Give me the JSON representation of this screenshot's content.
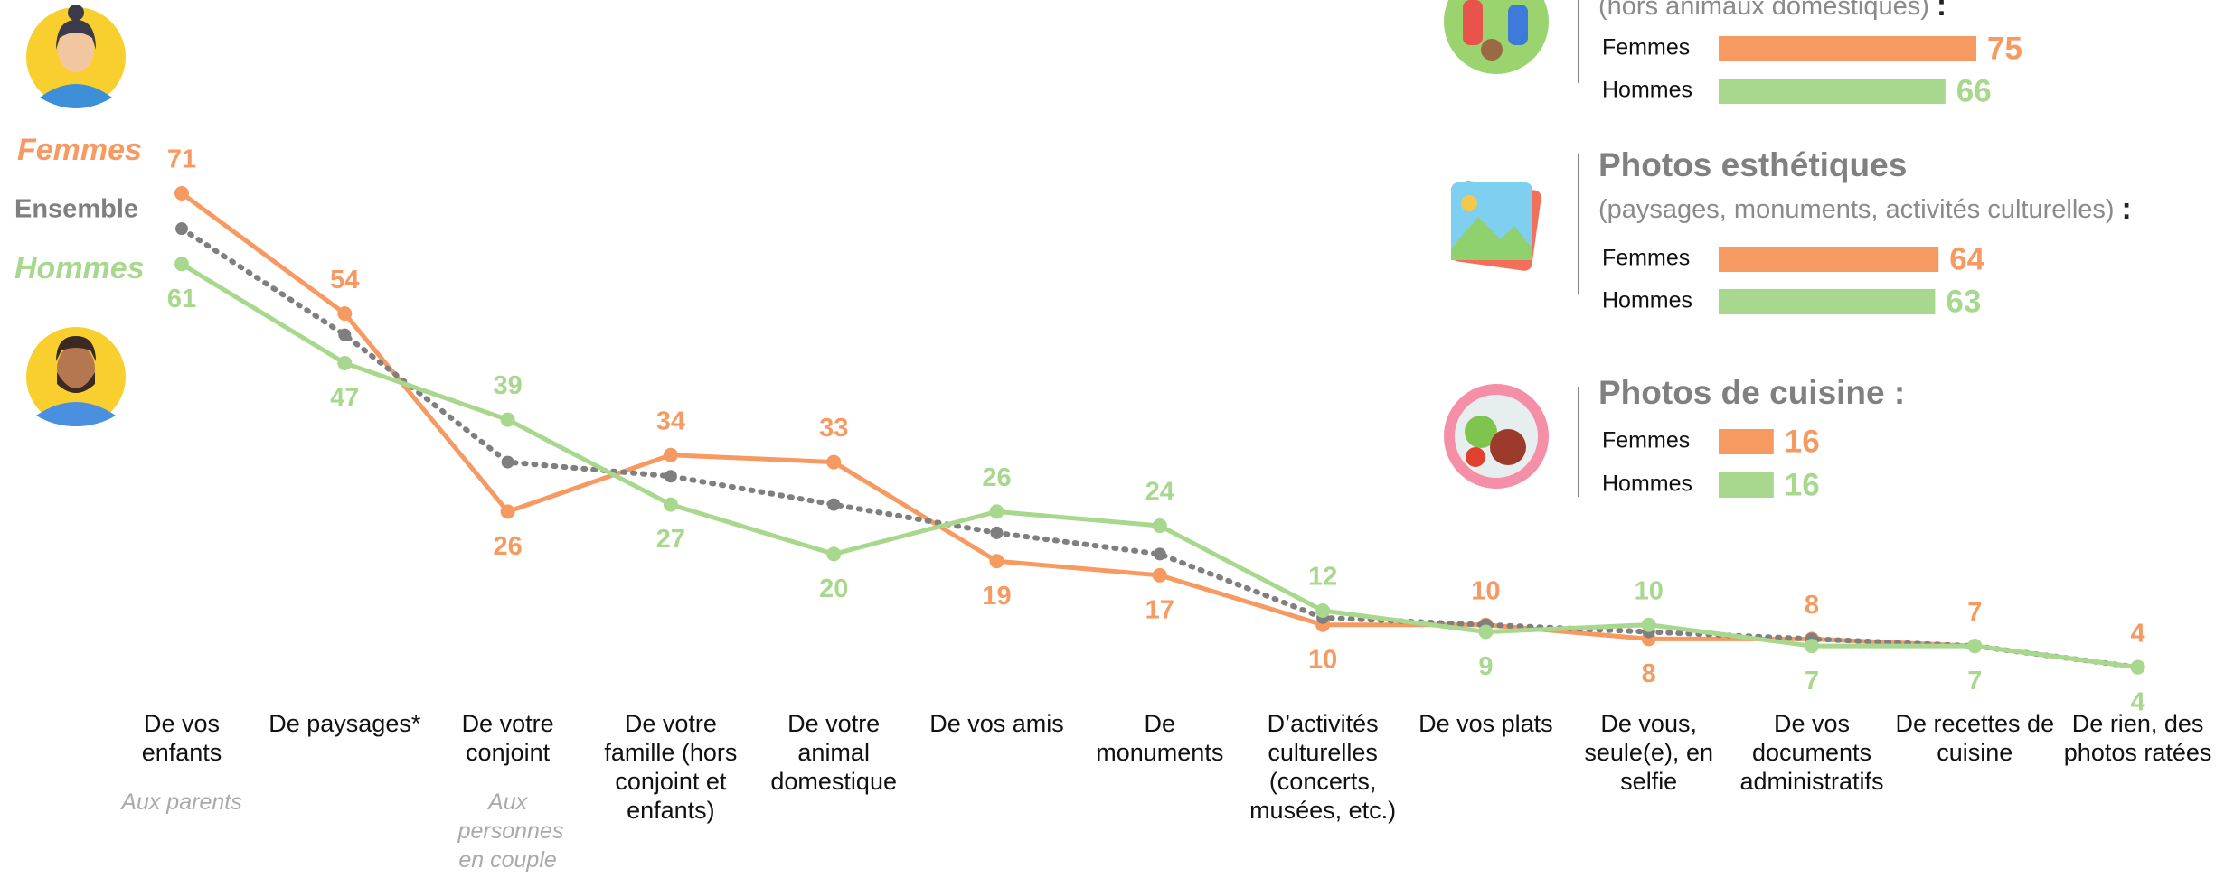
{
  "chart_data": {
    "type": "line",
    "categories": [
      "De vos enfants",
      "De paysages*",
      "De votre conjoint",
      "De votre famille (hors conjoint et enfants)",
      "De votre animal domestique",
      "De vos amis",
      "De monuments",
      "D’activités culturelles (concerts, musées, etc.)",
      "De vos plats",
      "De vous, seule(e), en selfie",
      "De vos documents administratifs",
      "De recettes de cuisine",
      "De rien, des photos ratées"
    ],
    "category_notes": [
      "Aux parents",
      null,
      "Aux personnes en couple",
      null,
      null,
      null,
      null,
      null,
      null,
      null,
      null,
      null,
      null
    ],
    "series": [
      {
        "name": "Femmes",
        "color": "#f79a62",
        "style": "solid",
        "values": [
          71,
          54,
          26,
          34,
          33,
          19,
          17,
          10,
          10,
          8,
          8,
          7,
          4
        ],
        "labels": true
      },
      {
        "name": "Ensemble",
        "color": "#7f7f7f",
        "style": "dotted",
        "values": [
          66,
          51,
          33,
          31,
          27,
          23,
          20,
          11,
          10,
          9,
          8,
          7,
          4
        ],
        "labels": false
      },
      {
        "name": "Hommes",
        "color": "#a8d88e",
        "style": "solid",
        "values": [
          61,
          47,
          39,
          27,
          20,
          26,
          24,
          12,
          9,
          10,
          7,
          7,
          4
        ],
        "labels": true
      }
    ],
    "panels": [
      {
        "subtitle": "(hors animaux domestiques)",
        "subtitle_end": ":",
        "bars": [
          {
            "name": "Femmes",
            "value": 75
          },
          {
            "name": "Hommes",
            "value": 66
          }
        ]
      },
      {
        "title": "Photos esthétiques",
        "subtitle": "(paysages, monuments, activités culturelles)",
        "subtitle_end": ":",
        "bars": [
          {
            "name": "Femmes",
            "value": 64
          },
          {
            "name": "Hommes",
            "value": 63
          }
        ]
      },
      {
        "title": "Photos de cuisine :",
        "bars": [
          {
            "name": "Femmes",
            "value": 16
          },
          {
            "name": "Hommes",
            "value": 16
          }
        ]
      }
    ]
  }
}
